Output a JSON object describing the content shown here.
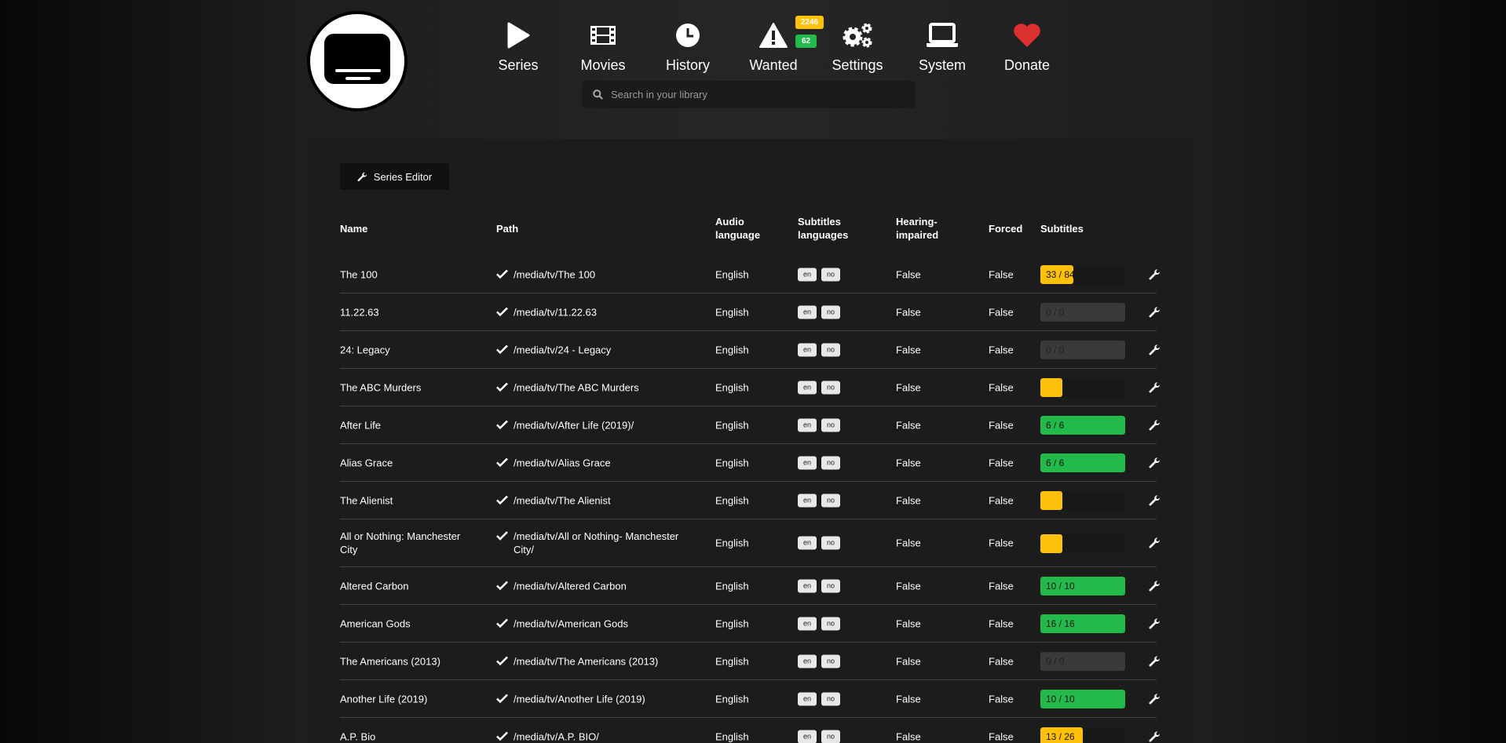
{
  "nav": [
    {
      "label": "Series",
      "icon": "play-icon"
    },
    {
      "label": "Movies",
      "icon": "film-icon"
    },
    {
      "label": "History",
      "icon": "clock-icon"
    },
    {
      "label": "Wanted",
      "icon": "warning-icon"
    },
    {
      "label": "Settings",
      "icon": "gears-icon"
    },
    {
      "label": "System",
      "icon": "laptop-icon"
    },
    {
      "label": "Donate",
      "icon": "heart-icon"
    }
  ],
  "wanted_badges": {
    "series": "2246",
    "movies": "62"
  },
  "colors": {
    "warning": "#ffc107",
    "success": "#22bb4b",
    "danger": "#dc2f2f",
    "empty": "#3a3a3a"
  },
  "search": {
    "placeholder": "Search in your library"
  },
  "toolbar": {
    "series_editor": "Series Editor"
  },
  "table": {
    "headers": {
      "name": "Name",
      "path": "Path",
      "audio": "Audio language",
      "subs_langs": "Subtitles languages",
      "hi": "Hearing-impaired",
      "forced": "Forced",
      "subtitles": "Subtitles"
    },
    "rows": [
      {
        "name": "The 100",
        "path": "/media/tv/The 100",
        "audio": "English",
        "langs": [
          "en",
          "no"
        ],
        "hi": "False",
        "forced": "False",
        "subs": "33 / 84",
        "progress": 0.39,
        "status": "warning"
      },
      {
        "name": "11.22.63",
        "path": "/media/tv/11.22.63",
        "audio": "English",
        "langs": [
          "en",
          "no"
        ],
        "hi": "False",
        "forced": "False",
        "subs": "0 / 0",
        "progress": 0,
        "status": "empty"
      },
      {
        "name": "24: Legacy",
        "path": "/media/tv/24 - Legacy",
        "audio": "English",
        "langs": [
          "en",
          "no"
        ],
        "hi": "False",
        "forced": "False",
        "subs": "0 / 0",
        "progress": 0,
        "status": "empty"
      },
      {
        "name": "The ABC Murders",
        "path": "/media/tv/The ABC Murders",
        "audio": "English",
        "langs": [
          "en",
          "no"
        ],
        "hi": "False",
        "forced": "False",
        "subs": "",
        "progress": 0.26,
        "status": "warning"
      },
      {
        "name": "After Life",
        "path": "/media/tv/After Life (2019)/",
        "audio": "English",
        "langs": [
          "en",
          "no"
        ],
        "hi": "False",
        "forced": "False",
        "subs": "6 / 6",
        "progress": 1,
        "status": "success"
      },
      {
        "name": "Alias Grace",
        "path": "/media/tv/Alias Grace",
        "audio": "English",
        "langs": [
          "en",
          "no"
        ],
        "hi": "False",
        "forced": "False",
        "subs": "6 / 6",
        "progress": 1,
        "status": "success"
      },
      {
        "name": "The Alienist",
        "path": "/media/tv/The Alienist",
        "audio": "English",
        "langs": [
          "en",
          "no"
        ],
        "hi": "False",
        "forced": "False",
        "subs": "",
        "progress": 0.26,
        "status": "warning"
      },
      {
        "name": "All or Nothing: Manchester City",
        "path": "/media/tv/All or Nothing- Manchester City/",
        "audio": "English",
        "langs": [
          "en",
          "no"
        ],
        "hi": "False",
        "forced": "False",
        "subs": "",
        "progress": 0.26,
        "status": "warning",
        "tall": true
      },
      {
        "name": "Altered Carbon",
        "path": "/media/tv/Altered Carbon",
        "audio": "English",
        "langs": [
          "en",
          "no"
        ],
        "hi": "False",
        "forced": "False",
        "subs": "10 / 10",
        "progress": 1,
        "status": "success"
      },
      {
        "name": "American Gods",
        "path": "/media/tv/American Gods",
        "audio": "English",
        "langs": [
          "en",
          "no"
        ],
        "hi": "False",
        "forced": "False",
        "subs": "16 / 16",
        "progress": 1,
        "status": "success"
      },
      {
        "name": "The Americans (2013)",
        "path": "/media/tv/The Americans (2013)",
        "audio": "English",
        "langs": [
          "en",
          "no"
        ],
        "hi": "False",
        "forced": "False",
        "subs": "0 / 0",
        "progress": 0,
        "status": "empty"
      },
      {
        "name": "Another Life (2019)",
        "path": "/media/tv/Another Life (2019)",
        "audio": "English",
        "langs": [
          "en",
          "no"
        ],
        "hi": "False",
        "forced": "False",
        "subs": "10 / 10",
        "progress": 1,
        "status": "success"
      },
      {
        "name": "A.P. Bio",
        "path": "/media/tv/A.P. BIO/",
        "audio": "English",
        "langs": [
          "en",
          "no"
        ],
        "hi": "False",
        "forced": "False",
        "subs": "13 / 26",
        "progress": 0.5,
        "status": "warning"
      }
    ]
  }
}
